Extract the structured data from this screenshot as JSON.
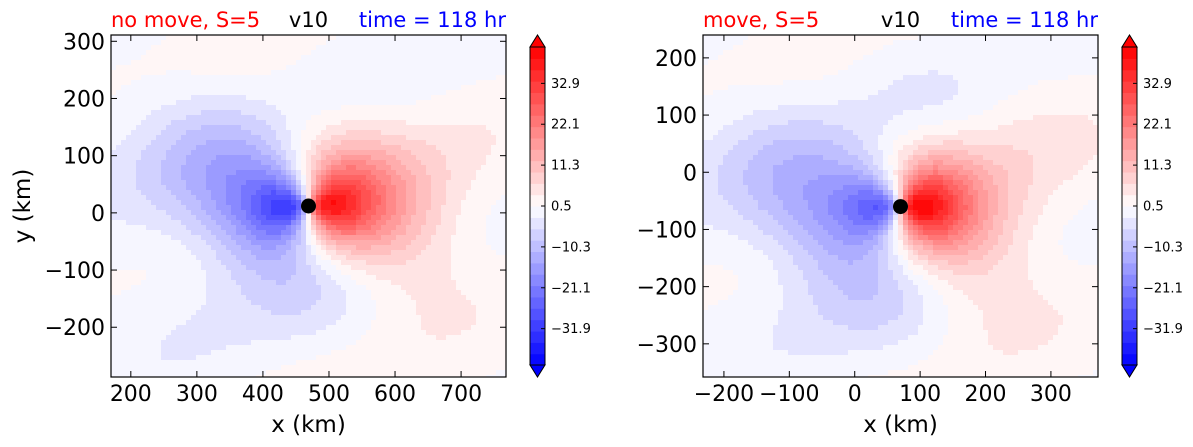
{
  "chart_data": [
    {
      "type": "heatmap",
      "title_left": "no move, S=5",
      "title_center": "v10",
      "title_right": "time = 118 hr",
      "title_colors": {
        "left": "#ff0000",
        "center": "#000000",
        "right": "#0000ff"
      },
      "xlabel": "x (km)",
      "ylabel": "y (km)",
      "xlim": [
        170,
        768
      ],
      "ylim": [
        -287,
        311
      ],
      "xticks": [
        200,
        300,
        400,
        500,
        600,
        700
      ],
      "xtick_labels": [
        "200",
        "300",
        "400",
        "500",
        "600",
        "700"
      ],
      "yticks": [
        -200,
        -100,
        0,
        100,
        200,
        300
      ],
      "ytick_labels": [
        "−200",
        "−100",
        "0",
        "100",
        "200",
        "300"
      ],
      "center": {
        "x": 469,
        "y": 12
      },
      "colorbar": {
        "ticks": [
          32.9,
          22.1,
          11.3,
          0.5,
          -10.3,
          -21.1,
          -31.9
        ],
        "tick_labels": [
          "32.9",
          "22.1",
          "11.3",
          "0.5",
          "−10.3",
          "−21.1",
          "−31.9"
        ],
        "range": [
          -41.5,
          42.5
        ],
        "colormap": "bwr"
      }
    },
    {
      "type": "heatmap",
      "title_left": "move, S=5",
      "title_center": "v10",
      "title_right": "time = 118 hr",
      "title_colors": {
        "left": "#ff0000",
        "center": "#000000",
        "right": "#0000ff"
      },
      "xlabel": "x (km)",
      "ylabel": "",
      "xlim": [
        -232,
        372
      ],
      "ylim": [
        -358,
        240
      ],
      "xticks": [
        -200,
        -100,
        0,
        100,
        200,
        300
      ],
      "xtick_labels": [
        "−200",
        "−100",
        "0",
        "100",
        "200",
        "300"
      ],
      "yticks": [
        -300,
        -200,
        -100,
        0,
        100,
        200
      ],
      "ytick_labels": [
        "−300",
        "−200",
        "−100",
        "0",
        "100",
        "200"
      ],
      "center": {
        "x": 70,
        "y": -60
      },
      "colorbar": {
        "ticks": [
          32.9,
          22.1,
          11.3,
          0.5,
          -10.3,
          -21.1,
          -31.9
        ],
        "tick_labels": [
          "32.9",
          "22.1",
          "11.3",
          "0.5",
          "−10.3",
          "−21.1",
          "−31.9"
        ],
        "range": [
          -41.5,
          42.5
        ],
        "colormap": "bwr"
      }
    }
  ]
}
